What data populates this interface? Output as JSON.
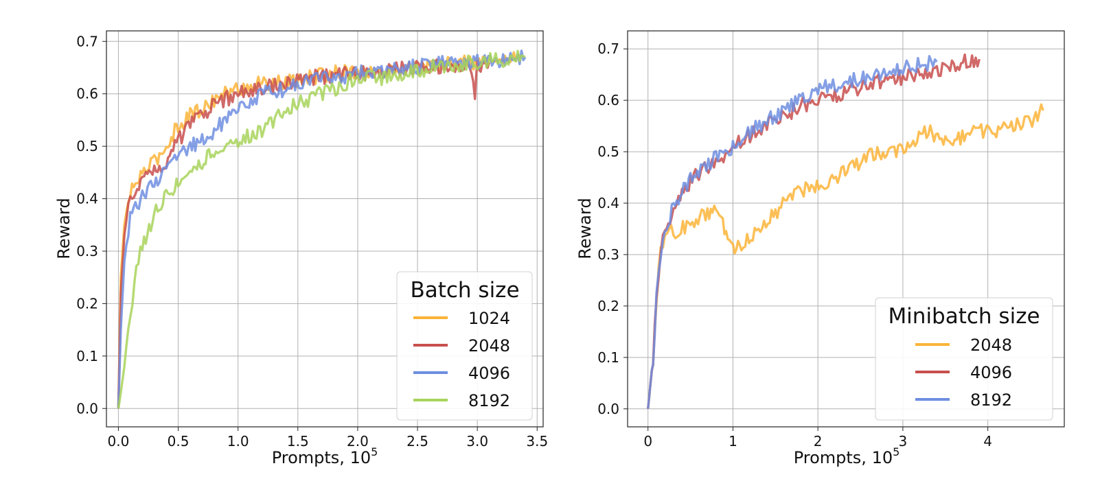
{
  "chart_data": [
    {
      "type": "line",
      "xlabel": "Prompts, ",
      "xlabel_exp_base": "10",
      "xlabel_exp": "5",
      "ylabel": "Reward",
      "xlim": [
        -0.1,
        3.55
      ],
      "ylim": [
        -0.035,
        0.72
      ],
      "xticks": [
        0.0,
        0.5,
        1.0,
        1.5,
        2.0,
        2.5,
        3.0,
        3.5
      ],
      "xtick_labels": [
        "0.0",
        "0.5",
        "1.0",
        "1.5",
        "2.0",
        "2.5",
        "3.0",
        "3.5"
      ],
      "yticks": [
        0.0,
        0.1,
        0.2,
        0.3,
        0.4,
        0.5,
        0.6,
        0.7
      ],
      "ytick_labels": [
        "0.0",
        "0.1",
        "0.2",
        "0.3",
        "0.4",
        "0.5",
        "0.6",
        "0.7"
      ],
      "grid": true,
      "legend": {
        "title": "Batch size",
        "placement": "lower-right"
      },
      "series": [
        {
          "name": "1024",
          "color": "#fbb438",
          "x": [
            0,
            0.02,
            0.05,
            0.1,
            0.2,
            0.3,
            0.4,
            0.5,
            0.6,
            0.7,
            0.8,
            1.0,
            1.2,
            1.4,
            1.6,
            1.8,
            2.0,
            2.2,
            2.4,
            2.6,
            2.8,
            3.0,
            3.2,
            3.35
          ],
          "y": [
            0.0,
            0.25,
            0.35,
            0.41,
            0.45,
            0.47,
            0.5,
            0.54,
            0.56,
            0.57,
            0.59,
            0.61,
            0.62,
            0.62,
            0.63,
            0.64,
            0.645,
            0.64,
            0.65,
            0.65,
            0.66,
            0.66,
            0.665,
            0.67
          ]
        },
        {
          "name": "2048",
          "color": "#c84f4d",
          "x": [
            0,
            0.02,
            0.05,
            0.1,
            0.2,
            0.3,
            0.4,
            0.5,
            0.6,
            0.7,
            0.8,
            1.0,
            1.2,
            1.4,
            1.6,
            1.8,
            2.0,
            2.2,
            2.4,
            2.6,
            2.8,
            2.95,
            2.98,
            3.0,
            3.1
          ],
          "y": [
            0.0,
            0.22,
            0.33,
            0.4,
            0.44,
            0.46,
            0.47,
            0.51,
            0.54,
            0.56,
            0.58,
            0.6,
            0.61,
            0.62,
            0.63,
            0.635,
            0.64,
            0.64,
            0.65,
            0.65,
            0.655,
            0.65,
            0.6,
            0.65,
            0.66
          ]
        },
        {
          "name": "4096",
          "color": "#6e8ee0",
          "x": [
            0,
            0.02,
            0.05,
            0.1,
            0.2,
            0.3,
            0.4,
            0.5,
            0.6,
            0.7,
            0.8,
            1.0,
            1.2,
            1.4,
            1.6,
            1.8,
            2.0,
            2.2,
            2.4,
            2.6,
            2.8,
            3.0,
            3.2,
            3.4
          ],
          "y": [
            0.0,
            0.15,
            0.28,
            0.36,
            0.41,
            0.43,
            0.45,
            0.48,
            0.5,
            0.51,
            0.53,
            0.57,
            0.6,
            0.61,
            0.625,
            0.63,
            0.64,
            0.645,
            0.65,
            0.655,
            0.66,
            0.66,
            0.665,
            0.67
          ]
        },
        {
          "name": "8192",
          "color": "#a8d45a",
          "x": [
            0,
            0.02,
            0.05,
            0.1,
            0.15,
            0.2,
            0.3,
            0.4,
            0.5,
            0.6,
            0.7,
            0.8,
            1.0,
            1.2,
            1.4,
            1.6,
            1.8,
            2.0,
            2.2,
            2.4,
            2.6,
            2.8,
            3.0,
            3.2,
            3.4
          ],
          "y": [
            0.0,
            0.03,
            0.08,
            0.18,
            0.27,
            0.31,
            0.37,
            0.41,
            0.43,
            0.46,
            0.47,
            0.49,
            0.51,
            0.53,
            0.57,
            0.59,
            0.61,
            0.63,
            0.63,
            0.64,
            0.65,
            0.655,
            0.66,
            0.665,
            0.67
          ]
        }
      ]
    },
    {
      "type": "line",
      "xlabel": "Prompts, ",
      "xlabel_exp_base": "10",
      "xlabel_exp": "5",
      "ylabel": "Reward",
      "xlim": [
        -0.24,
        4.9
      ],
      "ylim": [
        -0.035,
        0.735
      ],
      "xticks": [
        0,
        1,
        2,
        3,
        4
      ],
      "xtick_labels": [
        "0",
        "1",
        "2",
        "3",
        "4"
      ],
      "yticks": [
        0.0,
        0.1,
        0.2,
        0.3,
        0.4,
        0.5,
        0.6,
        0.7
      ],
      "ytick_labels": [
        "0.0",
        "0.1",
        "0.2",
        "0.3",
        "0.4",
        "0.5",
        "0.6",
        "0.7"
      ],
      "grid": true,
      "legend": {
        "title": "Minibatch size",
        "placement": "lower-right"
      },
      "series": [
        {
          "name": "2048",
          "color": "#fbb438",
          "x": [
            0,
            0.03,
            0.06,
            0.1,
            0.15,
            0.2,
            0.25,
            0.3,
            0.5,
            0.7,
            0.8,
            0.9,
            1.0,
            1.1,
            1.3,
            1.5,
            1.7,
            1.9,
            2.1,
            2.3,
            2.5,
            2.7,
            2.9,
            3.1,
            3.3,
            3.5,
            3.7,
            3.9,
            4.1,
            4.3,
            4.5,
            4.65
          ],
          "y": [
            0.0,
            0.05,
            0.1,
            0.22,
            0.3,
            0.34,
            0.35,
            0.34,
            0.36,
            0.38,
            0.39,
            0.35,
            0.31,
            0.32,
            0.35,
            0.38,
            0.42,
            0.43,
            0.44,
            0.46,
            0.48,
            0.5,
            0.5,
            0.52,
            0.54,
            0.52,
            0.53,
            0.54,
            0.54,
            0.55,
            0.56,
            0.58
          ]
        },
        {
          "name": "4096",
          "color": "#c84f4d",
          "x": [
            0,
            0.03,
            0.06,
            0.1,
            0.15,
            0.2,
            0.3,
            0.4,
            0.5,
            0.6,
            0.8,
            1.0,
            1.2,
            1.4,
            1.6,
            1.8,
            2.0,
            2.2,
            2.4,
            2.6,
            2.8,
            3.0,
            3.2,
            3.4,
            3.6,
            3.9
          ],
          "y": [
            0.0,
            0.05,
            0.1,
            0.22,
            0.3,
            0.35,
            0.39,
            0.42,
            0.44,
            0.46,
            0.48,
            0.51,
            0.53,
            0.55,
            0.57,
            0.59,
            0.6,
            0.61,
            0.62,
            0.63,
            0.64,
            0.645,
            0.65,
            0.66,
            0.67,
            0.68
          ]
        },
        {
          "name": "8192",
          "color": "#6e8ee0",
          "x": [
            0,
            0.03,
            0.06,
            0.1,
            0.15,
            0.2,
            0.3,
            0.4,
            0.5,
            0.6,
            0.8,
            1.0,
            1.2,
            1.4,
            1.6,
            1.8,
            2.0,
            2.2,
            2.4,
            2.6,
            2.8,
            3.0,
            3.2,
            3.4
          ],
          "y": [
            0.0,
            0.05,
            0.1,
            0.22,
            0.3,
            0.35,
            0.39,
            0.42,
            0.45,
            0.46,
            0.49,
            0.51,
            0.54,
            0.56,
            0.58,
            0.6,
            0.62,
            0.63,
            0.64,
            0.645,
            0.655,
            0.66,
            0.67,
            0.675
          ]
        }
      ]
    }
  ]
}
